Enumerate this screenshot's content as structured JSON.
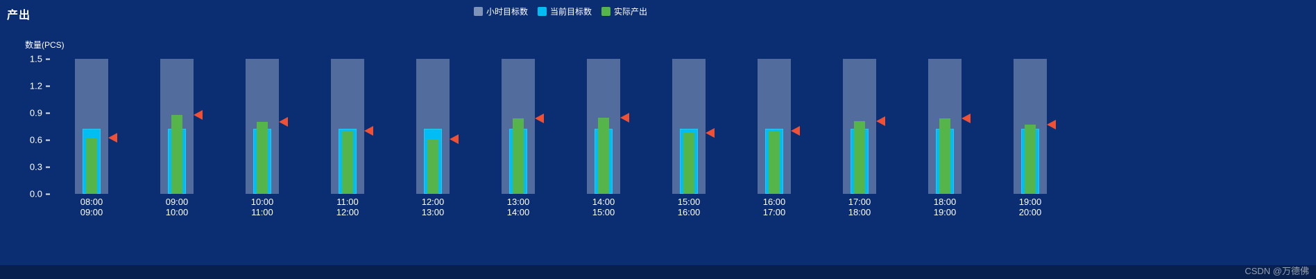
{
  "page": {
    "title": "产出",
    "watermark": "CSDN @万德佛"
  },
  "chart_data": {
    "type": "bar",
    "title": "产出",
    "ylabel": "数量(PCS)",
    "ylim": [
      0,
      1.5
    ],
    "yticks": [
      1.5,
      1.2,
      0.9,
      0.6,
      0.3,
      0.0
    ],
    "grid": false,
    "legend_position": "top-center",
    "background": "#0b2e73",
    "categories": [
      [
        "08:00",
        "09:00"
      ],
      [
        "09:00",
        "10:00"
      ],
      [
        "10:00",
        "11:00"
      ],
      [
        "11:00",
        "12:00"
      ],
      [
        "12:00",
        "13:00"
      ],
      [
        "13:00",
        "14:00"
      ],
      [
        "14:00",
        "15:00"
      ],
      [
        "15:00",
        "16:00"
      ],
      [
        "16:00",
        "17:00"
      ],
      [
        "17:00",
        "18:00"
      ],
      [
        "18:00",
        "19:00"
      ],
      [
        "19:00",
        "20:00"
      ]
    ],
    "series": [
      {
        "name": "小时目标数",
        "color": "#7e93b8",
        "values": [
          1.5,
          1.5,
          1.5,
          1.5,
          1.5,
          1.5,
          1.5,
          1.5,
          1.5,
          1.5,
          1.5,
          1.5
        ]
      },
      {
        "name": "当前目标数",
        "color": "#00bdf4",
        "values": [
          0.72,
          0.72,
          0.72,
          0.72,
          0.72,
          0.72,
          0.72,
          0.72,
          0.72,
          0.72,
          0.72,
          0.72
        ]
      },
      {
        "name": "实际产出",
        "color": "#55b44a",
        "values": [
          0.62,
          0.88,
          0.8,
          0.7,
          0.61,
          0.84,
          0.85,
          0.68,
          0.7,
          0.81,
          0.84,
          0.77
        ]
      }
    ],
    "marker": {
      "name": "实际产出指示",
      "shape": "left-triangle",
      "color": "#f05135",
      "follows": "实际产出"
    }
  }
}
